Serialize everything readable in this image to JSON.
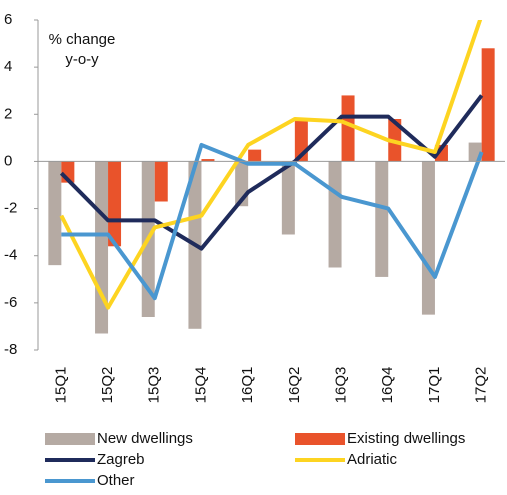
{
  "chart_data": {
    "type": "bar-line",
    "annotation": [
      "% change",
      "y-o-y"
    ],
    "categories": [
      "15Q1",
      "15Q2",
      "15Q3",
      "15Q4",
      "16Q1",
      "16Q2",
      "16Q3",
      "16Q4",
      "17Q1",
      "17Q2"
    ],
    "series": [
      {
        "name": "New dwellings",
        "kind": "bar",
        "color": "#b5aaa3",
        "values": [
          -4.4,
          -7.3,
          -6.6,
          -7.1,
          -1.9,
          -3.1,
          -4.5,
          -4.9,
          -6.5,
          0.8
        ]
      },
      {
        "name": "Existing dwellings",
        "kind": "bar",
        "color": "#e9532b",
        "values": [
          -0.9,
          -3.6,
          -1.7,
          0.1,
          0.5,
          1.8,
          2.8,
          1.8,
          0.7,
          4.8
        ]
      },
      {
        "name": "Zagreb",
        "kind": "line",
        "color": "#1f2b5b",
        "values": [
          -0.5,
          -2.5,
          -2.5,
          -3.7,
          -1.3,
          0,
          1.9,
          1.9,
          0.2,
          2.8
        ]
      },
      {
        "name": "Adriatic",
        "kind": "line",
        "color": "#fdd421",
        "values": [
          -2.3,
          -6.2,
          -2.8,
          -2.3,
          0.7,
          1.8,
          1.7,
          0.9,
          0.4,
          6.2
        ]
      },
      {
        "name": "Other",
        "kind": "line",
        "color": "#4a97d0",
        "values": [
          -3.1,
          -3.1,
          -5.8,
          0.7,
          -0.1,
          -0.1,
          -1.5,
          -2.0,
          -4.9,
          0.4
        ]
      }
    ],
    "ylim": [
      -8,
      6
    ],
    "yticks": [
      -8,
      -6,
      -4,
      -2,
      0,
      2,
      4,
      6
    ]
  }
}
